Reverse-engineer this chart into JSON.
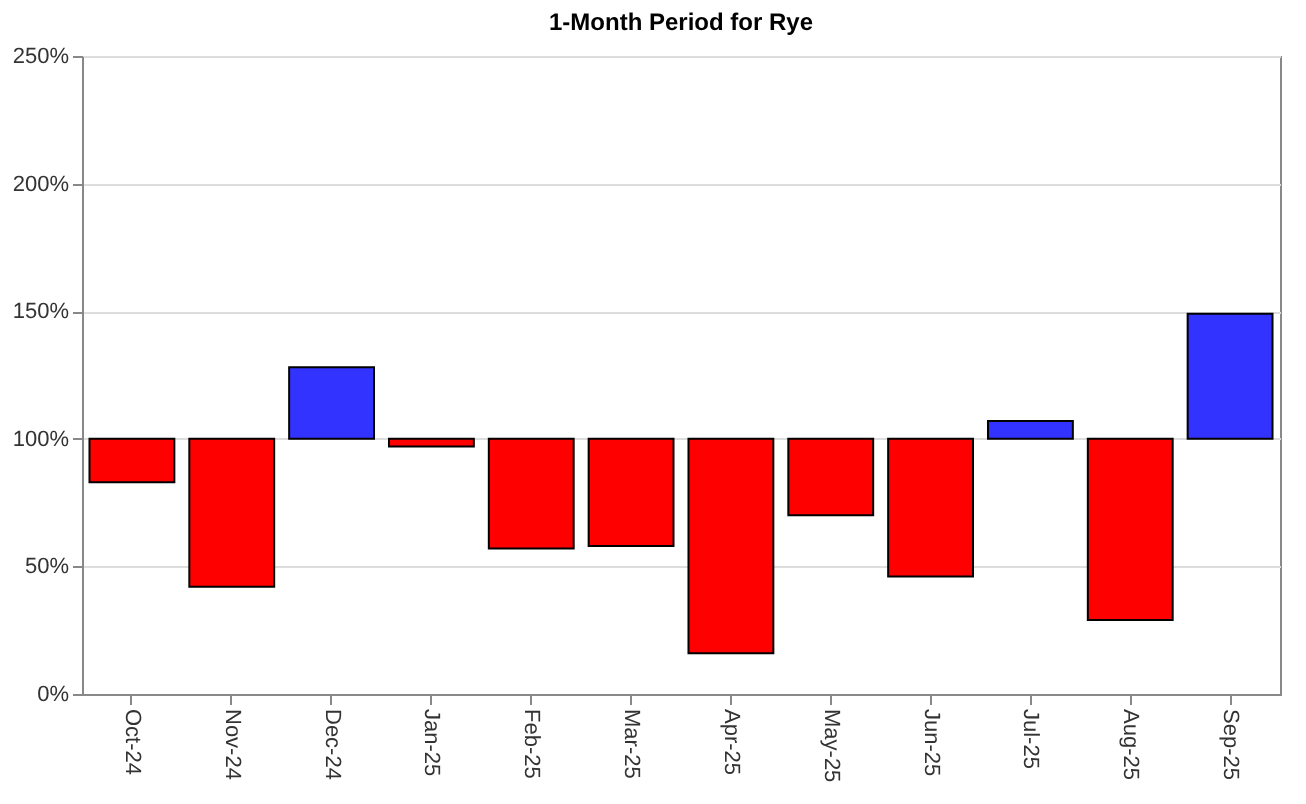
{
  "chart_data": {
    "type": "bar",
    "title": "1-Month Period for Rye",
    "categories": [
      "Oct-24",
      "Nov-24",
      "Dec-24",
      "Jan-25",
      "Feb-25",
      "Mar-25",
      "Apr-25",
      "May-25",
      "Jun-25",
      "Jul-25",
      "Aug-25",
      "Sep-25"
    ],
    "base": [
      100,
      100,
      100,
      100,
      100,
      100,
      100,
      100,
      100,
      100,
      100,
      100
    ],
    "values": [
      -17,
      -58,
      28,
      -3,
      -43,
      -42,
      -84,
      -30,
      -54,
      7,
      -71,
      49
    ],
    "colors": [
      "#ff0000",
      "#ff0000",
      "#3333ff",
      "#ff0000",
      "#ff0000",
      "#ff0000",
      "#ff0000",
      "#ff0000",
      "#ff0000",
      "#3333ff",
      "#ff0000",
      "#3333ff"
    ],
    "ylim": [
      0,
      250
    ],
    "yticks": [
      {
        "value": 0,
        "label": "0%"
      },
      {
        "value": 50,
        "label": "50%"
      },
      {
        "value": 100,
        "label": "100%"
      },
      {
        "value": 150,
        "label": "150%"
      },
      {
        "value": 200,
        "label": "200%"
      },
      {
        "value": 250,
        "label": "250%"
      }
    ],
    "grid": "y"
  }
}
